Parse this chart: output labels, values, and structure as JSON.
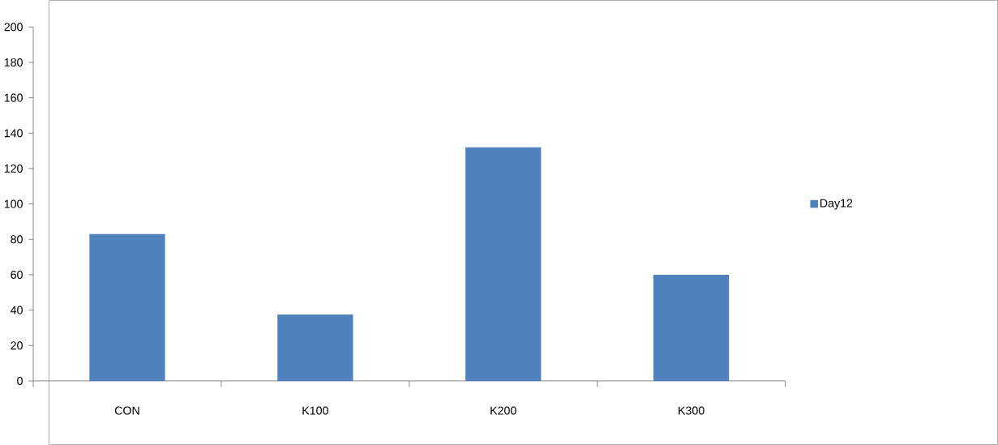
{
  "chart_data": {
    "type": "bar",
    "categories": [
      "CON",
      "K100",
      "K200",
      "K300"
    ],
    "series": [
      {
        "name": "Day12",
        "color": "#4f81bd",
        "values": [
          83,
          37.5,
          132,
          60
        ]
      }
    ],
    "ylim": [
      0,
      200
    ],
    "yticks": [
      0,
      20,
      40,
      60,
      80,
      100,
      120,
      140,
      160,
      180,
      200
    ],
    "grid": false,
    "legend": "right"
  }
}
